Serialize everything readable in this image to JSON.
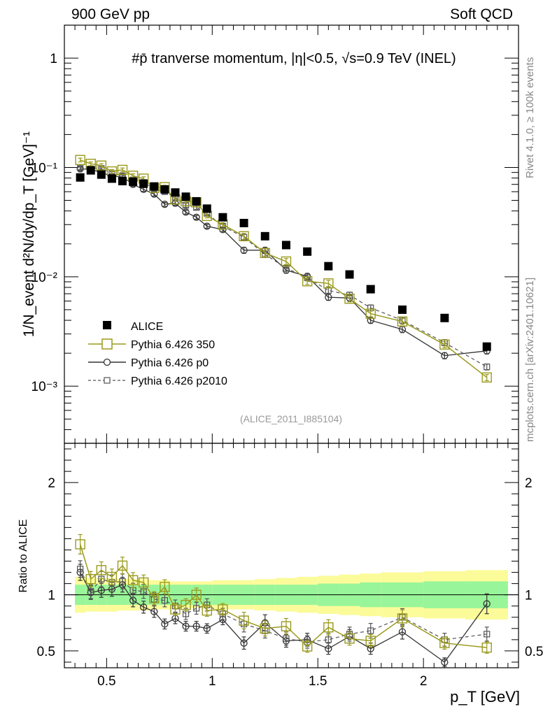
{
  "header": {
    "left": "900 GeV pp",
    "right": "Soft QCD"
  },
  "side_labels": {
    "rivet": "Rivet 4.1.0, ≥ 100k events",
    "mcplots": "mcplots.cern.ch [arXiv:2401.10621]"
  },
  "reference": "(ALICE_2011_I885104)",
  "chart_data": [
    {
      "type": "scatter",
      "panel": "main",
      "title": "#p̄ tranverse momentum, |η|<0.5, √s=0.9 TeV (INEL)",
      "ylabel": "1/N_event d²N/dy/dp_T [GeV]⁻¹",
      "yscale": "log",
      "ylim": [
        0.0003,
        2.0
      ],
      "xlim": [
        0.3,
        2.45
      ],
      "ytick_labels": [
        "10⁻³",
        "10⁻²",
        "10⁻¹",
        "1"
      ],
      "legend": [
        "ALICE",
        "Pythia 6.426 350",
        "Pythia 6.426 p0",
        "Pythia 6.426 p2010"
      ],
      "x": [
        0.375,
        0.425,
        0.475,
        0.525,
        0.575,
        0.625,
        0.675,
        0.725,
        0.775,
        0.825,
        0.875,
        0.925,
        0.975,
        1.05,
        1.15,
        1.25,
        1.35,
        1.45,
        1.55,
        1.65,
        1.75,
        1.9,
        2.1,
        2.3
      ],
      "series": [
        {
          "name": "ALICE",
          "values": [
            0.081,
            0.094,
            0.086,
            0.079,
            0.075,
            0.074,
            0.071,
            0.067,
            0.063,
            0.059,
            0.054,
            0.049,
            0.042,
            0.035,
            0.031,
            0.0235,
            0.0195,
            0.017,
            0.0125,
            0.0105,
            0.0077,
            0.005,
            0.0042,
            0.0023
          ]
        },
        {
          "name": "Pythia 6.426 350",
          "values": [
            0.117,
            0.108,
            0.104,
            0.092,
            0.095,
            0.084,
            0.079,
            0.065,
            0.066,
            0.051,
            0.049,
            0.048,
            0.036,
            0.03,
            0.0235,
            0.0165,
            0.0138,
            0.0091,
            0.0087,
            0.0063,
            0.0046,
            0.0039,
            0.0024,
            0.0012
          ]
        },
        {
          "name": "Pythia 6.426 p0",
          "values": [
            0.097,
            0.096,
            0.09,
            0.083,
            0.082,
            0.07,
            0.063,
            0.057,
            0.046,
            0.047,
            0.039,
            0.035,
            0.029,
            0.027,
            0.0175,
            0.0175,
            0.0115,
            0.0101,
            0.0065,
            0.0064,
            0.004,
            0.0033,
            0.0019,
            0.0021
          ]
        },
        {
          "name": "Pythia 6.426 p2010",
          "values": [
            0.1,
            0.097,
            0.098,
            0.088,
            0.084,
            0.077,
            0.073,
            0.064,
            0.06,
            0.053,
            0.045,
            0.043,
            0.038,
            0.029,
            0.023,
            0.016,
            0.012,
            0.0098,
            0.0075,
            0.0068,
            0.0052,
            0.004,
            0.0025,
            0.0015
          ]
        }
      ]
    },
    {
      "type": "scatter",
      "panel": "ratio",
      "ylabel": "Ratio to ALICE",
      "xlabel": "p_T [GeV]",
      "ylim": [
        0.35,
        2.35
      ],
      "xlim": [
        0.3,
        2.45
      ],
      "xtick_labels": [
        "0.5",
        "1",
        "1.5",
        "2"
      ],
      "ytick_labels": [
        "0.5",
        "1",
        "2"
      ],
      "x": [
        0.375,
        0.425,
        0.475,
        0.525,
        0.575,
        0.625,
        0.675,
        0.725,
        0.775,
        0.825,
        0.875,
        0.925,
        0.975,
        1.05,
        1.15,
        1.25,
        1.35,
        1.45,
        1.55,
        1.65,
        1.75,
        1.9,
        2.1,
        2.3
      ],
      "band_x_edges": [
        0.35,
        0.4,
        0.45,
        0.5,
        0.55,
        0.6,
        0.65,
        0.7,
        0.75,
        0.8,
        0.85,
        0.9,
        0.95,
        1.0,
        1.1,
        1.2,
        1.3,
        1.4,
        1.5,
        1.6,
        1.7,
        1.8,
        2.0,
        2.2,
        2.4
      ],
      "band_green_halfwidth": [
        0.09,
        0.09,
        0.09,
        0.09,
        0.09,
        0.09,
        0.09,
        0.09,
        0.09,
        0.09,
        0.09,
        0.09,
        0.09,
        0.09,
        0.09,
        0.09,
        0.09,
        0.09,
        0.1,
        0.1,
        0.11,
        0.11,
        0.12,
        0.12
      ],
      "band_yellow_halfwidth": [
        0.16,
        0.15,
        0.15,
        0.15,
        0.14,
        0.14,
        0.14,
        0.13,
        0.13,
        0.12,
        0.12,
        0.12,
        0.12,
        0.13,
        0.13,
        0.14,
        0.15,
        0.16,
        0.17,
        0.18,
        0.19,
        0.2,
        0.21,
        0.22
      ],
      "series": [
        {
          "name": "Pythia 6.426 350",
          "values": [
            1.45,
            1.14,
            1.22,
            1.16,
            1.26,
            1.13,
            1.11,
            0.97,
            1.07,
            0.87,
            0.91,
            1.0,
            0.86,
            0.87,
            0.77,
            0.7,
            0.72,
            0.54,
            0.71,
            0.61,
            0.59,
            0.79,
            0.57,
            0.53
          ]
        },
        {
          "name": "Pythia 6.426 p0",
          "values": [
            1.2,
            1.02,
            1.04,
            1.05,
            1.09,
            0.95,
            0.89,
            0.85,
            0.74,
            0.79,
            0.72,
            0.72,
            0.7,
            0.78,
            0.57,
            0.75,
            0.59,
            0.6,
            0.52,
            0.63,
            0.52,
            0.67,
            0.4,
            0.92
          ]
        },
        {
          "name": "Pythia 6.426 p2010",
          "values": [
            1.23,
            1.03,
            1.14,
            1.11,
            1.12,
            1.04,
            1.03,
            0.96,
            0.95,
            0.9,
            0.83,
            0.88,
            0.91,
            0.83,
            0.74,
            0.68,
            0.61,
            0.58,
            0.6,
            0.65,
            0.68,
            0.8,
            0.6,
            0.65
          ]
        }
      ]
    }
  ],
  "colors": {
    "alice": "#000000",
    "p350": "#9a9a1e",
    "p0": "#333333",
    "p2010": "#555555",
    "band_green": "#99f599",
    "band_yellow": "#fbfb9a"
  }
}
